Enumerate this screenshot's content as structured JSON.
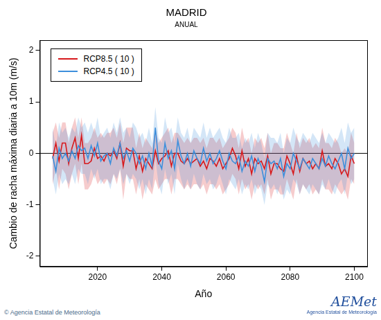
{
  "chart_data": {
    "type": "line",
    "title": "MADRID",
    "subtitle": "ANUAL",
    "x_label": "Año",
    "y_label": "Cambio de racha máxima diaria a 10m (m/s)",
    "x": [
      2006,
      2007,
      2008,
      2009,
      2010,
      2011,
      2012,
      2013,
      2014,
      2015,
      2016,
      2017,
      2018,
      2019,
      2020,
      2021,
      2022,
      2023,
      2024,
      2025,
      2026,
      2027,
      2028,
      2029,
      2030,
      2031,
      2032,
      2033,
      2034,
      2035,
      2036,
      2037,
      2038,
      2039,
      2040,
      2041,
      2042,
      2043,
      2044,
      2045,
      2046,
      2047,
      2048,
      2049,
      2050,
      2051,
      2052,
      2053,
      2054,
      2055,
      2056,
      2057,
      2058,
      2059,
      2060,
      2061,
      2062,
      2063,
      2064,
      2065,
      2066,
      2067,
      2068,
      2069,
      2070,
      2071,
      2072,
      2073,
      2074,
      2075,
      2076,
      2077,
      2078,
      2079,
      2080,
      2081,
      2082,
      2083,
      2084,
      2085,
      2086,
      2087,
      2088,
      2089,
      2090,
      2091,
      2092,
      2093,
      2094,
      2095,
      2096,
      2097,
      2098,
      2099,
      2100
    ],
    "series": [
      {
        "name": "RCP4.5 ( 10 )",
        "color": "#3d8fdc",
        "values": [
          -0.05,
          -0.35,
          0.1,
          -0.1,
          0.0,
          -0.15,
          0.05,
          -0.1,
          0.15,
          0.05,
          0.1,
          -0.1,
          0.15,
          -0.05,
          0.2,
          -0.15,
          -0.05,
          0.0,
          -0.2,
          0.1,
          -0.05,
          0.2,
          -0.1,
          0.05,
          -0.15,
          0.1,
          0.0,
          -0.2,
          -0.05,
          -0.3,
          0.0,
          -0.25,
          0.5,
          -0.15,
          -0.3,
          0.2,
          -0.1,
          0.05,
          -0.3,
          0.25,
          -0.05,
          -0.2,
          0.0,
          -0.25,
          0.05,
          -0.1,
          -0.2,
          0.1,
          -0.15,
          0.0,
          -0.2,
          -0.1,
          0.05,
          -0.15,
          -0.3,
          0.0,
          -0.15,
          -0.2,
          -0.05,
          -0.35,
          -0.15,
          -0.25,
          -0.05,
          -0.35,
          -0.1,
          -0.25,
          -0.55,
          -0.1,
          -0.2,
          -0.15,
          -0.3,
          -0.1,
          -0.45,
          -0.2,
          -0.3,
          0.0,
          -0.15,
          -0.3,
          -0.1,
          -0.2,
          -0.3,
          -0.1,
          -0.2,
          -0.3,
          -0.1,
          -0.25,
          -0.05,
          -0.2,
          -0.3,
          -0.15,
          0.0,
          -0.3,
          0.1,
          -0.1,
          0.0
        ],
        "lower": [
          -0.5,
          -0.8,
          -0.4,
          -0.6,
          -0.5,
          -0.6,
          -0.4,
          -0.6,
          -0.3,
          -0.4,
          -0.4,
          -0.6,
          -0.3,
          -0.5,
          -0.3,
          -0.6,
          -0.5,
          -0.5,
          -0.7,
          -0.4,
          -0.5,
          -0.3,
          -0.6,
          -0.4,
          -0.6,
          -0.4,
          -0.5,
          -0.7,
          -0.5,
          -0.8,
          -0.5,
          -0.7,
          -0.1,
          -0.6,
          -0.8,
          -0.3,
          -0.6,
          -0.4,
          -0.8,
          -0.2,
          -0.5,
          -0.7,
          -0.5,
          -0.7,
          -0.4,
          -0.6,
          -0.7,
          -0.4,
          -0.6,
          -0.5,
          -0.7,
          -0.6,
          -0.4,
          -0.6,
          -0.8,
          -0.5,
          -0.6,
          -0.7,
          -0.5,
          -0.8,
          -0.6,
          -0.7,
          -0.5,
          -0.8,
          -0.6,
          -0.7,
          -1.0,
          -0.6,
          -0.7,
          -0.6,
          -0.8,
          -0.6,
          -0.9,
          -0.7,
          -0.8,
          -0.5,
          -0.6,
          -0.8,
          -0.6,
          -0.7,
          -0.8,
          -0.6,
          -0.7,
          -0.8,
          -0.6,
          -0.7,
          -0.5,
          -0.7,
          -0.8,
          -0.6,
          -0.5,
          -0.8,
          -0.4,
          -0.6,
          -0.5
        ],
        "upper": [
          0.5,
          0.1,
          0.6,
          0.4,
          0.5,
          0.3,
          0.5,
          0.4,
          0.7,
          0.5,
          0.6,
          0.4,
          0.6,
          0.4,
          0.7,
          0.3,
          0.4,
          0.5,
          0.3,
          0.6,
          0.4,
          0.7,
          0.4,
          0.5,
          0.3,
          0.6,
          0.5,
          0.3,
          0.4,
          0.2,
          0.5,
          0.2,
          0.9,
          0.3,
          0.2,
          0.7,
          0.4,
          0.5,
          0.2,
          0.7,
          0.4,
          0.3,
          0.5,
          0.2,
          0.5,
          0.4,
          0.3,
          0.6,
          0.3,
          0.5,
          0.3,
          0.4,
          0.5,
          0.3,
          0.2,
          0.5,
          0.3,
          0.3,
          0.4,
          0.1,
          0.3,
          0.2,
          0.4,
          0.1,
          0.4,
          0.2,
          -0.1,
          0.4,
          0.3,
          0.3,
          0.2,
          0.4,
          0.0,
          0.3,
          0.2,
          0.5,
          0.3,
          0.2,
          0.4,
          0.3,
          0.2,
          0.4,
          0.3,
          0.2,
          0.4,
          0.2,
          0.4,
          0.3,
          0.2,
          0.3,
          0.5,
          0.2,
          0.6,
          0.4,
          0.5
        ]
      },
      {
        "name": "RCP8.5 ( 10 )",
        "color": "#d7191c",
        "values": [
          -0.1,
          0.2,
          -0.15,
          0.2,
          0.2,
          -0.2,
          0.1,
          0.3,
          -0.1,
          0.35,
          -0.2,
          -0.2,
          -0.15,
          0.1,
          -0.1,
          -0.05,
          -0.15,
          0.0,
          -0.05,
          0.05,
          -0.1,
          0.2,
          -0.25,
          0.1,
          0.05,
          0.05,
          -0.3,
          -0.05,
          -0.35,
          -0.1,
          -0.2,
          -0.3,
          0.05,
          -0.2,
          -0.1,
          -0.05,
          0.05,
          -0.25,
          0.0,
          0.0,
          -0.15,
          -0.2,
          -0.1,
          -0.2,
          -0.15,
          -0.1,
          -0.25,
          -0.15,
          -0.3,
          -0.1,
          -0.15,
          -0.25,
          -0.1,
          -0.3,
          -0.2,
          -0.1,
          0.1,
          -0.05,
          -0.3,
          0.05,
          -0.25,
          -0.1,
          -0.4,
          -0.1,
          -0.2,
          -0.15,
          -0.3,
          -0.05,
          -0.4,
          -0.2,
          -0.2,
          -0.3,
          -0.35,
          -0.05,
          -0.2,
          -0.4,
          -0.05,
          -0.35,
          -0.1,
          -0.2,
          -0.15,
          -0.3,
          -0.2,
          -0.3,
          0.05,
          -0.25,
          -0.2,
          -0.3,
          -0.1,
          -0.2,
          -0.4,
          -0.3,
          -0.45,
          -0.05,
          -0.2
        ],
        "lower": [
          -0.6,
          -0.3,
          -0.7,
          -0.3,
          -0.4,
          -0.7,
          -0.4,
          -0.2,
          -0.6,
          -0.2,
          -0.7,
          -0.7,
          -0.6,
          -0.4,
          -0.6,
          -0.5,
          -0.6,
          -0.5,
          -0.6,
          -0.4,
          -0.6,
          -0.3,
          -0.9,
          -0.4,
          -0.5,
          -0.5,
          -0.8,
          -0.5,
          -0.9,
          -0.6,
          -0.7,
          -0.8,
          -0.5,
          -0.7,
          -0.6,
          -0.5,
          -0.5,
          -0.8,
          -0.5,
          -0.5,
          -0.6,
          -0.7,
          -0.6,
          -0.7,
          -0.6,
          -0.6,
          -0.7,
          -0.6,
          -0.8,
          -0.6,
          -0.6,
          -0.7,
          -0.6,
          -0.8,
          -0.7,
          -0.6,
          -0.4,
          -0.5,
          -0.8,
          -0.5,
          -0.7,
          -0.6,
          -0.9,
          -0.6,
          -0.7,
          -0.6,
          -0.8,
          -0.5,
          -0.9,
          -0.7,
          -0.7,
          -0.8,
          -0.8,
          -0.5,
          -0.7,
          -0.9,
          -0.5,
          -0.8,
          -0.6,
          -0.7,
          -0.6,
          -0.8,
          -0.7,
          -0.8,
          -0.5,
          -0.7,
          -0.7,
          -0.8,
          -0.6,
          -0.7,
          -0.8,
          -0.7,
          -0.9,
          -0.5,
          -0.6
        ],
        "upper": [
          0.4,
          0.6,
          0.3,
          0.6,
          0.6,
          0.2,
          0.5,
          0.7,
          0.3,
          0.7,
          0.2,
          0.2,
          0.3,
          0.5,
          0.3,
          0.4,
          0.3,
          0.4,
          0.4,
          0.5,
          0.3,
          0.6,
          0.2,
          0.5,
          0.5,
          0.5,
          0.1,
          0.4,
          0.1,
          0.3,
          0.2,
          0.1,
          0.5,
          0.2,
          0.3,
          0.4,
          0.5,
          0.2,
          0.4,
          0.4,
          0.3,
          0.2,
          0.3,
          0.2,
          0.3,
          0.3,
          0.2,
          0.3,
          0.1,
          0.3,
          0.3,
          0.2,
          0.3,
          0.1,
          0.2,
          0.3,
          0.5,
          0.4,
          0.1,
          0.5,
          0.2,
          0.3,
          0.0,
          0.3,
          0.2,
          0.3,
          0.1,
          0.4,
          0.0,
          0.2,
          0.2,
          0.1,
          0.1,
          0.4,
          0.2,
          0.0,
          0.4,
          0.1,
          0.3,
          0.2,
          0.3,
          0.1,
          0.2,
          0.1,
          0.5,
          0.2,
          0.2,
          0.1,
          0.3,
          0.2,
          0.0,
          0.1,
          0.0,
          0.4,
          0.2
        ]
      }
    ],
    "legend_order": [
      "RCP8.5 ( 10 )",
      "RCP4.5 ( 10 )"
    ],
    "hline": 0,
    "xlim": [
      2002,
      2104
    ],
    "xticks": [
      2020,
      2040,
      2060,
      2080,
      2100
    ],
    "ylim": [
      -2.2,
      2.2
    ],
    "yticks": [
      -2,
      -1,
      0,
      1,
      2
    ],
    "grid": false,
    "legend": "top-left"
  },
  "footer": "© Agencia Estatal de Meteorología",
  "logo": "AEMet",
  "logo_text": "Agencia Estatal de Meteorología"
}
